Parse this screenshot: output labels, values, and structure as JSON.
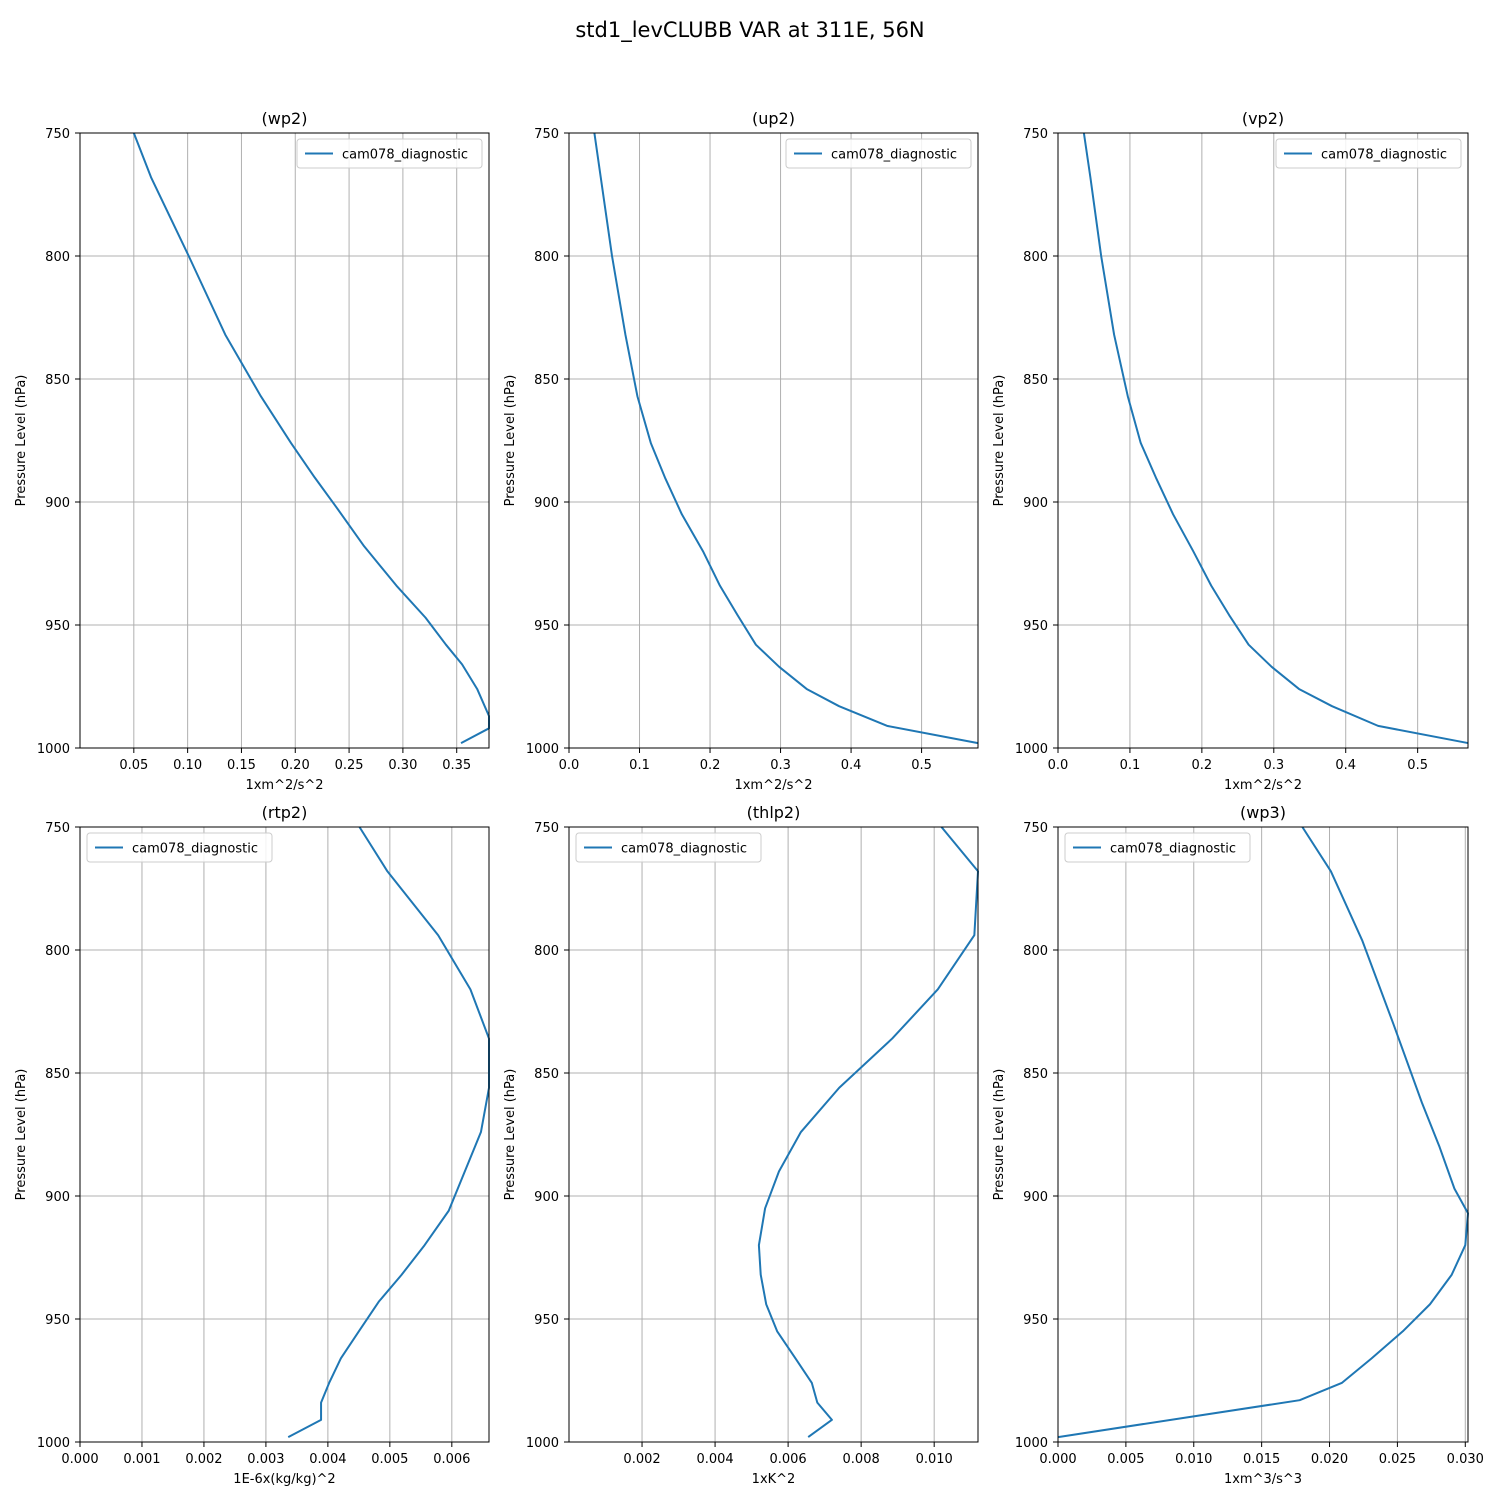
{
  "figure": {
    "suptitle": "std1_levCLUBB VAR at 311E, 56N"
  },
  "style": {
    "line_color": "#1f77b4",
    "grid_color": "#b0b0b0",
    "axis_color": "#000000"
  },
  "chart_data": [
    {
      "type": "line",
      "title": "(wp2)",
      "xlabel": "1xm^2/s^2",
      "ylabel": "Pressure Level (hPa)",
      "xlim": [
        0.0,
        0.38
      ],
      "ylim": [
        1000,
        750
      ],
      "grid": true,
      "legend_position": "upper right",
      "xticks": [
        0.05,
        0.1,
        0.15,
        0.2,
        0.25,
        0.3,
        0.35
      ],
      "xtick_labels": [
        "0.05",
        "0.10",
        "0.15",
        "0.20",
        "0.25",
        "0.30",
        "0.35"
      ],
      "yticks": [
        750,
        800,
        850,
        900,
        950,
        1000
      ],
      "ytick_labels": [
        "750",
        "800",
        "850",
        "900",
        "950",
        "1000"
      ],
      "series": [
        {
          "name": "cam078_diagnostic",
          "x": [
            0.05,
            0.066,
            0.101,
            0.135,
            0.168,
            0.196,
            0.218,
            0.238,
            0.264,
            0.294,
            0.321,
            0.34,
            0.355,
            0.369,
            0.38,
            0.38,
            0.354
          ],
          "y": [
            750,
            768,
            800,
            832,
            857,
            876,
            890,
            902,
            918,
            934,
            947,
            958,
            966,
            976,
            987,
            992,
            998
          ]
        }
      ]
    },
    {
      "type": "line",
      "title": "(up2)",
      "xlabel": "1xm^2/s^2",
      "ylabel": "Pressure Level (hPa)",
      "xlim": [
        0.0,
        0.58
      ],
      "ylim": [
        1000,
        750
      ],
      "grid": true,
      "legend_position": "upper right",
      "xticks": [
        0.0,
        0.1,
        0.2,
        0.3,
        0.4,
        0.5
      ],
      "xtick_labels": [
        "0.0",
        "0.1",
        "0.2",
        "0.3",
        "0.4",
        "0.5"
      ],
      "yticks": [
        750,
        800,
        850,
        900,
        950,
        1000
      ],
      "ytick_labels": [
        "750",
        "800",
        "850",
        "900",
        "950",
        "1000"
      ],
      "series": [
        {
          "name": "cam078_diagnostic",
          "x": [
            0.036,
            0.045,
            0.061,
            0.08,
            0.097,
            0.116,
            0.136,
            0.16,
            0.19,
            0.214,
            0.239,
            0.265,
            0.298,
            0.337,
            0.383,
            0.451,
            0.58
          ],
          "y": [
            750,
            768,
            800,
            832,
            857,
            876,
            890,
            905,
            920,
            934,
            946,
            958,
            967,
            976,
            983,
            991,
            998
          ]
        }
      ]
    },
    {
      "type": "line",
      "title": "(vp2)",
      "xlabel": "1xm^2/s^2",
      "ylabel": "Pressure Level (hPa)",
      "xlim": [
        0.0,
        0.57
      ],
      "ylim": [
        1000,
        750
      ],
      "grid": true,
      "legend_position": "upper right",
      "xticks": [
        0.0,
        0.1,
        0.2,
        0.3,
        0.4,
        0.5
      ],
      "xtick_labels": [
        "0.0",
        "0.1",
        "0.2",
        "0.3",
        "0.4",
        "0.5"
      ],
      "yticks": [
        750,
        800,
        850,
        900,
        950,
        1000
      ],
      "ytick_labels": [
        "750",
        "800",
        "850",
        "900",
        "950",
        "1000"
      ],
      "series": [
        {
          "name": "cam078_diagnostic",
          "x": [
            0.036,
            0.045,
            0.06,
            0.078,
            0.097,
            0.115,
            0.136,
            0.16,
            0.188,
            0.213,
            0.238,
            0.265,
            0.297,
            0.335,
            0.381,
            0.445,
            0.57
          ],
          "y": [
            750,
            768,
            800,
            832,
            857,
            876,
            890,
            905,
            920,
            934,
            946,
            958,
            967,
            976,
            983,
            991,
            998
          ]
        }
      ]
    },
    {
      "type": "line",
      "title": "(rtp2)",
      "xlabel": "1E-6x(kg/kg)^2",
      "ylabel": "Pressure Level (hPa)",
      "xlim": [
        0.0,
        0.0066
      ],
      "ylim": [
        1000,
        750
      ],
      "grid": true,
      "legend_position": "upper left",
      "xticks": [
        0.0,
        0.001,
        0.002,
        0.003,
        0.004,
        0.005,
        0.006
      ],
      "xtick_labels": [
        "0.000",
        "0.001",
        "0.002",
        "0.003",
        "0.004",
        "0.005",
        "0.006"
      ],
      "yticks": [
        750,
        800,
        850,
        900,
        950,
        1000
      ],
      "ytick_labels": [
        "750",
        "800",
        "850",
        "900",
        "950",
        "1000"
      ],
      "series": [
        {
          "name": "cam078_diagnostic",
          "x": [
            0.00451,
            0.00496,
            0.00578,
            0.0063,
            0.0066,
            0.0066,
            0.00647,
            0.00621,
            0.00595,
            0.00556,
            0.00519,
            0.00482,
            0.0045,
            0.00421,
            0.00402,
            0.00389,
            0.00389,
            0.00336
          ],
          "y": [
            750,
            768,
            794,
            816,
            836,
            856,
            874,
            890,
            906,
            920,
            932,
            943,
            955,
            966,
            976,
            984,
            991,
            998
          ]
        }
      ]
    },
    {
      "type": "line",
      "title": "(thlp2)",
      "xlabel": "1xK^2",
      "ylabel": "Pressure Level (hPa)",
      "xlim": [
        0.0,
        0.0112
      ],
      "ylim": [
        1000,
        750
      ],
      "grid": true,
      "legend_position": "upper left",
      "xticks": [
        0.002,
        0.004,
        0.006,
        0.008,
        0.01
      ],
      "xtick_labels": [
        "0.002",
        "0.004",
        "0.006",
        "0.008",
        "0.010"
      ],
      "yticks": [
        750,
        800,
        850,
        900,
        950,
        1000
      ],
      "ytick_labels": [
        "750",
        "800",
        "850",
        "900",
        "950",
        "1000"
      ],
      "series": [
        {
          "name": "cam078_diagnostic",
          "x": [
            0.0102,
            0.0112,
            0.0111,
            0.0101,
            0.00885,
            0.0074,
            0.00635,
            0.00575,
            0.00537,
            0.0052,
            0.00525,
            0.0054,
            0.0057,
            0.0062,
            0.00665,
            0.0068,
            0.0072,
            0.00655
          ],
          "y": [
            750,
            768,
            794,
            816,
            836,
            856,
            874,
            890,
            905,
            920,
            932,
            944,
            955,
            966,
            976,
            984,
            991,
            998
          ]
        }
      ]
    },
    {
      "type": "line",
      "title": "(wp3)",
      "xlabel": "1xm^3/s^3",
      "ylabel": "Pressure Level (hPa)",
      "xlim": [
        0.0,
        0.0302
      ],
      "ylim": [
        1000,
        750
      ],
      "grid": true,
      "legend_position": "upper left",
      "xticks": [
        0.0,
        0.005,
        0.01,
        0.015,
        0.02,
        0.025,
        0.03
      ],
      "xtick_labels": [
        "0.000",
        "0.005",
        "0.010",
        "0.015",
        "0.020",
        "0.025",
        "0.030"
      ],
      "yticks": [
        750,
        800,
        850,
        900,
        950,
        1000
      ],
      "ytick_labels": [
        "750",
        "800",
        "850",
        "900",
        "950",
        "1000"
      ],
      "series": [
        {
          "name": "cam078_diagnostic",
          "x": [
            0.018,
            0.0201,
            0.0224,
            0.0247,
            0.0268,
            0.0281,
            0.0292,
            0.0302,
            0.03,
            0.029,
            0.0274,
            0.0254,
            0.0231,
            0.0209,
            0.0178,
            0.0
          ],
          "y": [
            750,
            768,
            796,
            830,
            862,
            880,
            897,
            907,
            920,
            932,
            944,
            955,
            966,
            976,
            983,
            998
          ]
        }
      ]
    }
  ]
}
